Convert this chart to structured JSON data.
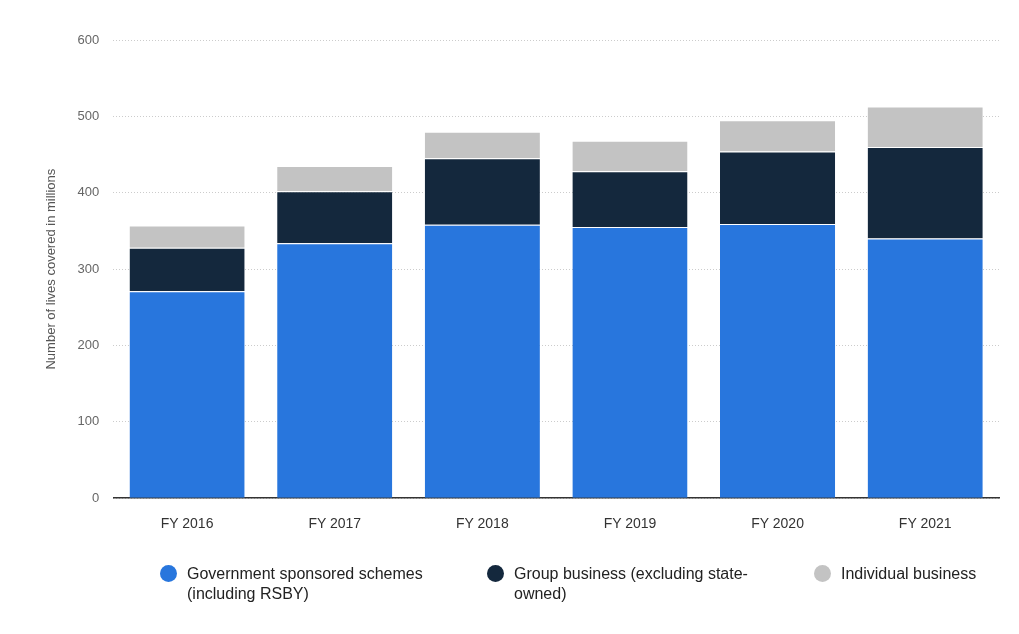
{
  "chart_data": {
    "type": "bar",
    "ylabel": "Number of lives covered in millions",
    "categories": [
      "FY 2016",
      "FY 2017",
      "FY 2018",
      "FY 2019",
      "FY 2020",
      "FY 2021"
    ],
    "stacked": true,
    "series": [
      {
        "name": "Government sponsored schemes (including RSBY)",
        "color": "#2876dd",
        "values": [
          271,
          334,
          358,
          355,
          359,
          340
        ]
      },
      {
        "name": "Group business (excluding state-owned)",
        "color": "#14283d",
        "values": [
          57,
          68,
          87,
          73,
          95,
          120
        ]
      },
      {
        "name": "Individual business",
        "color": "#c3c3c3",
        "values": [
          29,
          33,
          35,
          40,
          41,
          53
        ]
      }
    ],
    "ylim": [
      0,
      600
    ],
    "yticks": [
      0,
      100,
      200,
      300,
      400,
      500,
      600
    ],
    "grid": "y",
    "legend": "bottom"
  }
}
